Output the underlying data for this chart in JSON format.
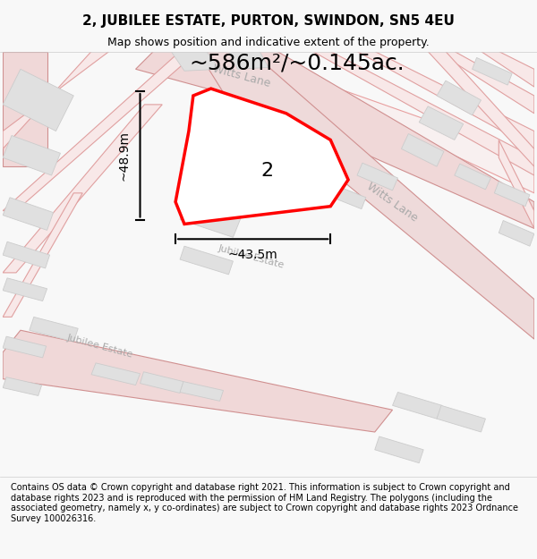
{
  "title": "2, JUBILEE ESTATE, PURTON, SWINDON, SN5 4EU",
  "subtitle": "Map shows position and indicative extent of the property.",
  "area_label": "~586m²/~0.145ac.",
  "plot_label": "2",
  "dim_width": "~43.5m",
  "dim_height": "~48.9m",
  "footer": "Contains OS data © Crown copyright and database right 2021. This information is subject to Crown copyright and database rights 2023 and is reproduced with the permission of HM Land Registry. The polygons (including the associated geometry, namely x, y co-ordinates) are subject to Crown copyright and database rights 2023 Ordnance Survey 100026316.",
  "bg_color": "#f5f5f5",
  "map_bg": "#ffffff",
  "road_color": "#f0c0c0",
  "road_stroke": "#e08080",
  "building_color": "#e0e0e0",
  "plot_color": "#ff0000",
  "plot_fill": "none",
  "street_label_color": "#c0c0c0",
  "dim_color": "#000000",
  "fig_width": 6.0,
  "fig_height": 6.25,
  "dpi": 100
}
